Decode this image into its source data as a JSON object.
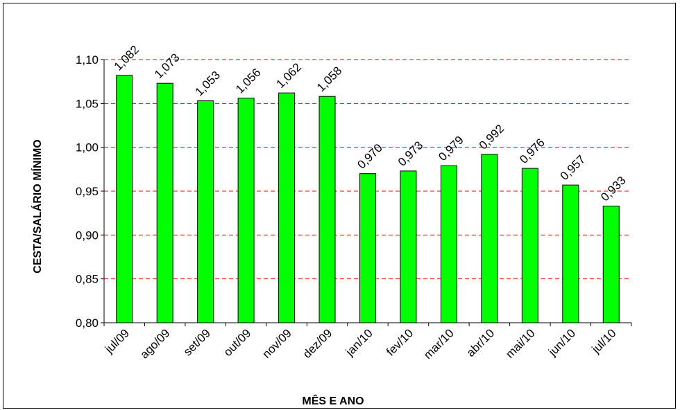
{
  "chart_data": {
    "type": "bar",
    "xlabel": "MÊS E ANO",
    "ylabel": "CESTA/SALÁRIO MÍNIMO",
    "ylim": [
      0.8,
      1.1
    ],
    "yticks": [
      "0,80",
      "0,85",
      "0,90",
      "0,95",
      "1,00",
      "1,05",
      "1,10"
    ],
    "ytick_values": [
      0.8,
      0.85,
      0.9,
      0.95,
      1.0,
      1.05,
      1.1
    ],
    "categories": [
      "jul/09",
      "ago/09",
      "set/09",
      "out/09",
      "nov/09",
      "dez/09",
      "jan/10",
      "fev/10",
      "mar/10",
      "abr/10",
      "mai/10",
      "jun/10",
      "jul/10"
    ],
    "values": [
      1.082,
      1.073,
      1.053,
      1.056,
      1.062,
      1.058,
      0.97,
      0.973,
      0.979,
      0.992,
      0.976,
      0.957,
      0.933
    ],
    "data_labels": [
      "1,082",
      "1,073",
      "1,053",
      "1,056",
      "1,062",
      "1,058",
      "0,970",
      "0,973",
      "0,979",
      "0,992",
      "0,976",
      "0,957",
      "0,933"
    ],
    "grid": "horizontal dashed red",
    "colors": {
      "bar": "#00ff00",
      "bar_border": "#000000",
      "grid": "#ff0000"
    }
  }
}
